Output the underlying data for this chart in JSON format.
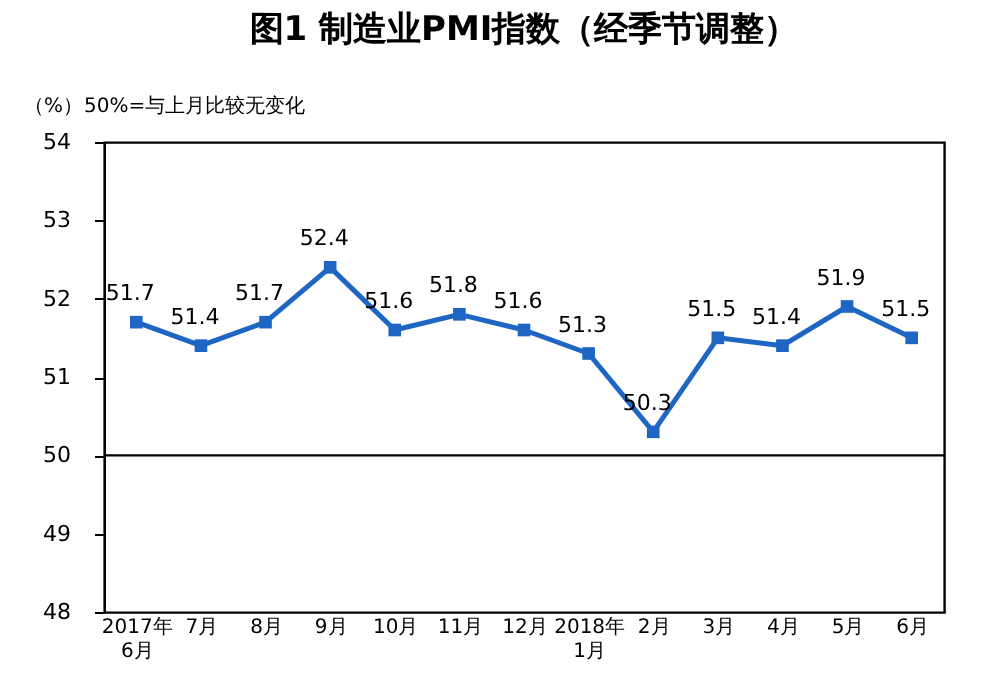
{
  "chart_data": {
    "type": "line",
    "title": "图1 制造业PMI指数（经季节调整）",
    "ylabel": "（%）",
    "annotations": [
      "50%=与上月比较无变化"
    ],
    "categories": [
      "2017年\n6月",
      "7月",
      "8月",
      "9月",
      "10月",
      "11月",
      "12月",
      "2018年\n1月",
      "2月",
      "3月",
      "4月",
      "5月",
      "6月"
    ],
    "series": [
      {
        "color": "#1f66c4",
        "values": [
          51.7,
          51.4,
          51.7,
          52.4,
          51.6,
          51.8,
          51.6,
          51.3,
          50.3,
          51.5,
          51.4,
          51.9,
          51.5
        ]
      }
    ],
    "ylim": [
      48,
      54
    ],
    "yticks": [
      48,
      49,
      50,
      51,
      52,
      53,
      54
    ],
    "ref_lines": [
      {
        "axis": "y",
        "value": 50,
        "color": "#000000"
      }
    ],
    "data_labels": true,
    "marker": "square",
    "line_style": "solid",
    "grid": false
  }
}
